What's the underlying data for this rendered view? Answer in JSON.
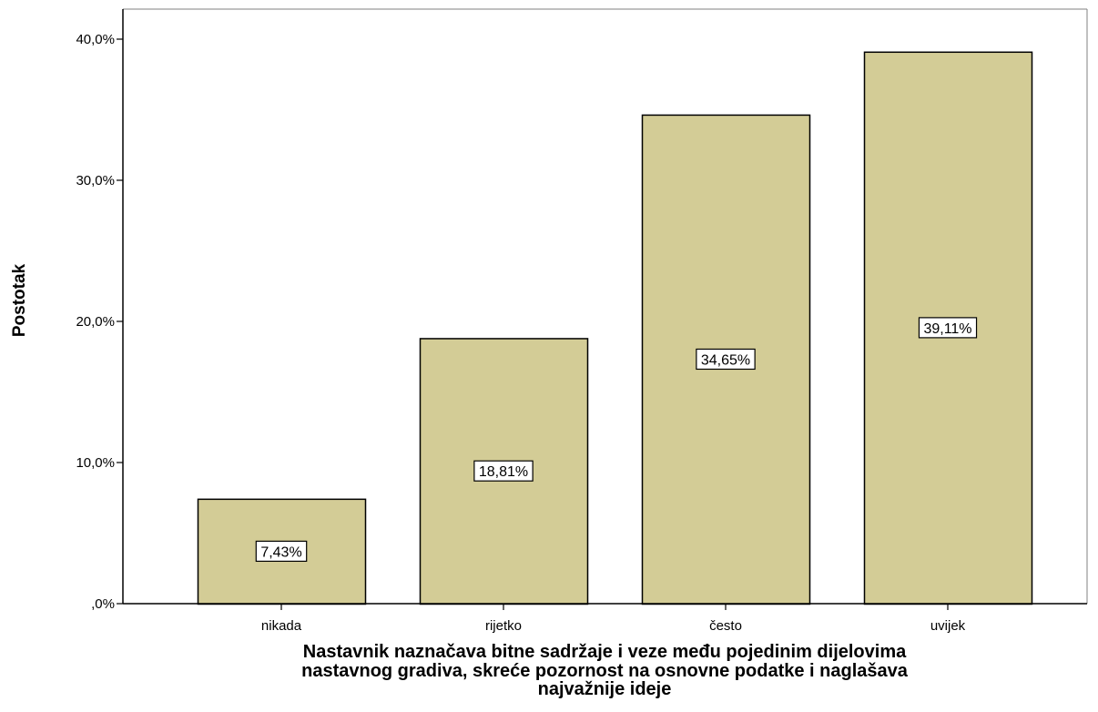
{
  "chart_data": {
    "type": "bar",
    "categories": [
      "nikada",
      "rijetko",
      "često",
      "uvijek"
    ],
    "values": [
      7.43,
      18.81,
      34.65,
      39.11
    ],
    "data_labels": [
      "7,43%",
      "18,81%",
      "34,65%",
      "39,11%"
    ],
    "y_ticks": [
      {
        "value": 0,
        "label": ",0%"
      },
      {
        "value": 10,
        "label": "10,0%"
      },
      {
        "value": 20,
        "label": "20,0%"
      },
      {
        "value": 30,
        "label": "30,0%"
      },
      {
        "value": 40,
        "label": "40,0%"
      }
    ],
    "ylim": [
      0,
      42.2
    ],
    "ylabel": "Postotak",
    "xlabel_lines": [
      "Nastavnik naznačava bitne sadržaje i veze među pojedinim dijelovima",
      "nastavnog gradiva, skreće pozornost na osnovne podatke i naglašava",
      "najvažnije ideje"
    ],
    "grid": false,
    "legend": "none",
    "colors": {
      "bar_fill": "#D3CC96",
      "bar_stroke": "#000000",
      "axis": "#000000",
      "label_box_fill": "#FFFFFF",
      "frame": "#808080"
    }
  }
}
